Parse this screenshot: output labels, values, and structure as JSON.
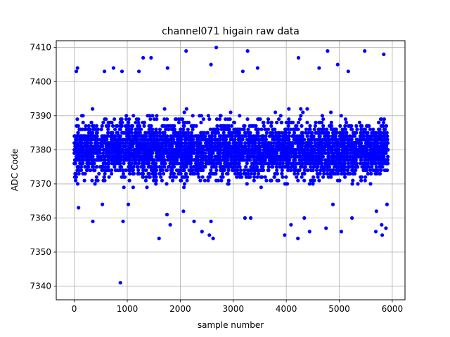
{
  "chart_data": {
    "type": "scatter",
    "title": "channel071 higain raw data",
    "xlabel": "sample number",
    "ylabel": "ADC Code",
    "xlim": [
      -340,
      6240
    ],
    "ylim": [
      7336,
      7412
    ],
    "xticks": [
      0,
      1000,
      2000,
      3000,
      4000,
      5000,
      6000
    ],
    "yticks": [
      7340,
      7350,
      7360,
      7370,
      7380,
      7390,
      7400,
      7410
    ],
    "xtick_labels": [
      "0",
      "1000",
      "2000",
      "3000",
      "4000",
      "5000",
      "6000"
    ],
    "ytick_labels": [
      "7340",
      "7350",
      "7360",
      "7370",
      "7380",
      "7390",
      "7400",
      "7410"
    ],
    "grid": true,
    "marker_color": "#0000ff",
    "series": [
      {
        "points": [
          [
            2680,
            7410
          ],
          [
            2110,
            7409
          ],
          [
            3270,
            7409
          ],
          [
            4780,
            7409
          ],
          [
            5480,
            7409
          ],
          [
            5840,
            7408
          ],
          [
            1300,
            7407
          ],
          [
            1450,
            7407
          ],
          [
            4230,
            7407
          ],
          [
            2580,
            7405
          ],
          [
            4970,
            7405
          ],
          [
            60,
            7404
          ],
          [
            740,
            7404
          ],
          [
            1760,
            7404
          ],
          [
            3460,
            7404
          ],
          [
            4620,
            7404
          ],
          [
            40,
            7403
          ],
          [
            570,
            7403
          ],
          [
            900,
            7403
          ],
          [
            1220,
            7403
          ],
          [
            3180,
            7403
          ],
          [
            5170,
            7403
          ],
          [
            870,
            7341
          ],
          [
            1600,
            7354
          ],
          [
            2620,
            7354
          ],
          [
            4220,
            7354
          ],
          [
            2550,
            7355
          ],
          [
            3970,
            7355
          ],
          [
            5810,
            7355
          ],
          [
            2410,
            7356
          ],
          [
            4440,
            7356
          ],
          [
            5040,
            7356
          ],
          [
            5690,
            7356
          ],
          [
            4750,
            7357
          ],
          [
            5880,
            7357
          ],
          [
            1810,
            7358
          ],
          [
            4090,
            7358
          ],
          [
            5800,
            7358
          ],
          [
            920,
            7359
          ],
          [
            350,
            7359
          ],
          [
            2260,
            7359
          ],
          [
            2580,
            7359
          ],
          [
            3220,
            7360
          ],
          [
            4340,
            7360
          ],
          [
            3330,
            7360
          ],
          [
            5240,
            7360
          ],
          [
            1750,
            7361
          ],
          [
            2060,
            7362
          ],
          [
            5700,
            7362
          ],
          [
            80,
            7363
          ],
          [
            530,
            7364
          ],
          [
            1020,
            7364
          ],
          [
            4880,
            7364
          ],
          [
            5900,
            7364
          ]
        ]
      }
    ],
    "bulk": {
      "x_range": [
        0,
        5920
      ],
      "center": 7380,
      "spread": 7.5,
      "count": 4200
    }
  }
}
